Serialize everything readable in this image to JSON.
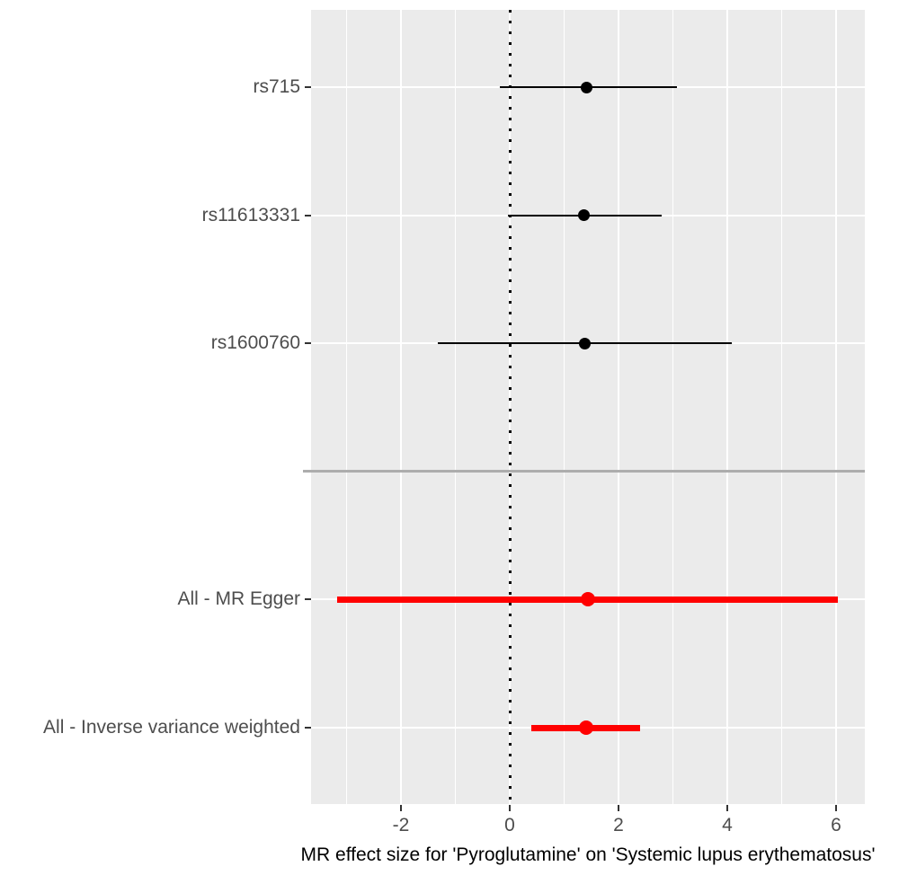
{
  "figure": {
    "background": "#FFFFFF",
    "panel_bg": "#EBEBEB",
    "grid_color": "#FFFFFF",
    "tick_mark_color": "#333333",
    "axis_text_color": "#4D4D4D",
    "axis_title_color": "#000000",
    "separator_color": "#ADADAD",
    "zero_line": {
      "x": 0,
      "style": "dotted",
      "color": "#000000"
    }
  },
  "chart_data": {
    "type": "scatter",
    "subtype": "forest-plot-horizontal-errorbars",
    "title": "",
    "xlabel": "MR effect size for 'Pyroglutamine' on 'Systemic lupus erythematosus'",
    "ylabel": "",
    "xlim": [
      -3.65,
      6.53
    ],
    "x_ticks": [
      -2,
      0,
      2,
      4,
      6
    ],
    "x_tick_labels": [
      "-2",
      "0",
      "2",
      "4",
      "6"
    ],
    "x_minor_ticks": [
      -3,
      -1,
      1,
      3,
      5
    ],
    "grid": true,
    "legend": false,
    "zero_reference_line": 0,
    "rows": [
      {
        "label": "rs715",
        "estimate": 1.42,
        "ci_low": -0.19,
        "ci_high": 3.07,
        "group": "snp",
        "color": "#000000"
      },
      {
        "label": "rs11613331",
        "estimate": 1.37,
        "ci_low": -0.04,
        "ci_high": 2.8,
        "group": "snp",
        "color": "#000000"
      },
      {
        "label": "rs1600760",
        "estimate": 1.38,
        "ci_low": -1.32,
        "ci_high": 4.08,
        "group": "snp",
        "color": "#000000"
      },
      {
        "label": "",
        "separator": true
      },
      {
        "label": "All - MR Egger",
        "estimate": 1.43,
        "ci_low": -3.17,
        "ci_high": 6.03,
        "group": "all",
        "color": "#FF0000"
      },
      {
        "label": "All - Inverse variance weighted",
        "estimate": 1.4,
        "ci_low": 0.39,
        "ci_high": 2.4,
        "group": "all",
        "color": "#FF0000"
      }
    ]
  }
}
